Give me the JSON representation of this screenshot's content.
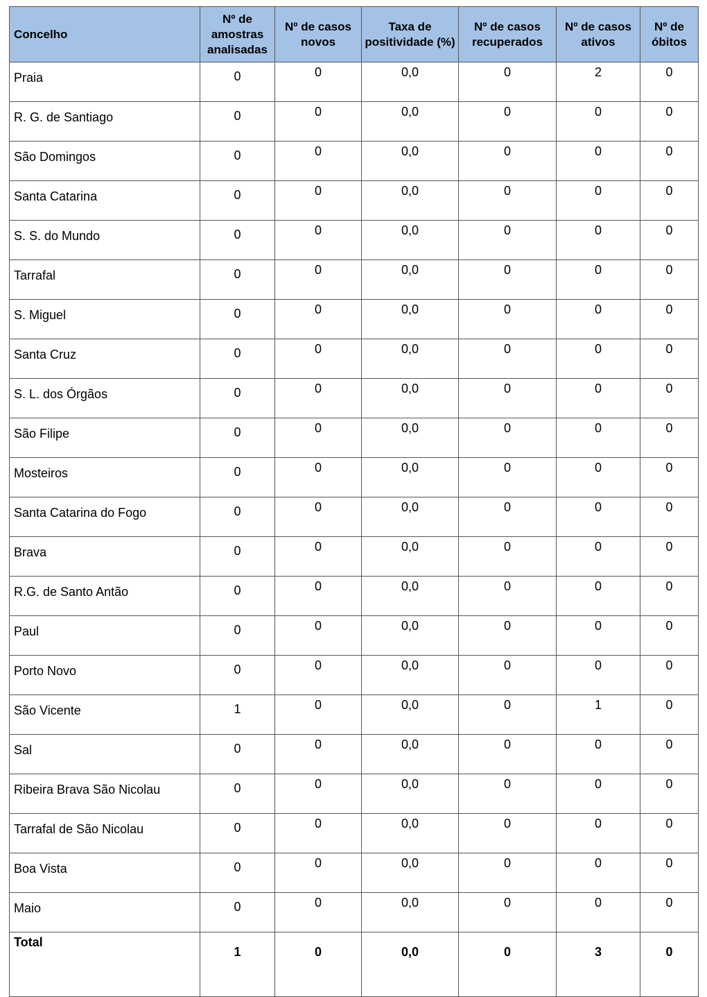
{
  "table": {
    "header_color": "#a4c2e6",
    "headers": [
      "Concelho",
      "Nº de amostras analisadas",
      "Nº de casos novos",
      "Taxa de positividade (%)",
      "Nº de casos recuperados",
      "Nº de casos ativos",
      "Nº de óbitos"
    ],
    "rows": [
      [
        "Praia",
        "0",
        "0",
        "0,0",
        "0",
        "2",
        "0"
      ],
      [
        "R. G. de Santiago",
        "0",
        "0",
        "0,0",
        "0",
        "0",
        "0"
      ],
      [
        "São Domingos",
        "0",
        "0",
        "0,0",
        "0",
        "0",
        "0"
      ],
      [
        "Santa Catarina",
        "0",
        "0",
        "0,0",
        "0",
        "0",
        "0"
      ],
      [
        "S. S. do Mundo",
        "0",
        "0",
        "0,0",
        "0",
        "0",
        "0"
      ],
      [
        "Tarrafal",
        "0",
        "0",
        "0,0",
        "0",
        "0",
        "0"
      ],
      [
        "S. Miguel",
        "0",
        "0",
        "0,0",
        "0",
        "0",
        "0"
      ],
      [
        "Santa Cruz",
        "0",
        "0",
        "0,0",
        "0",
        "0",
        "0"
      ],
      [
        "S. L. dos Órgãos",
        "0",
        "0",
        "0,0",
        "0",
        "0",
        "0"
      ],
      [
        "São Filipe",
        "0",
        "0",
        "0,0",
        "0",
        "0",
        "0"
      ],
      [
        "Mosteiros",
        "0",
        "0",
        "0,0",
        "0",
        "0",
        "0"
      ],
      [
        "Santa Catarina do Fogo",
        "0",
        "0",
        "0,0",
        "0",
        "0",
        "0"
      ],
      [
        "Brava",
        "0",
        "0",
        "0,0",
        "0",
        "0",
        "0"
      ],
      [
        "R.G. de Santo Antão",
        "0",
        "0",
        "0,0",
        "0",
        "0",
        "0"
      ],
      [
        "Paul",
        "0",
        "0",
        "0,0",
        "0",
        "0",
        "0"
      ],
      [
        "Porto Novo",
        "0",
        "0",
        "0,0",
        "0",
        "0",
        "0"
      ],
      [
        "São Vicente",
        "1",
        "0",
        "0,0",
        "0",
        "1",
        "0"
      ],
      [
        "Sal",
        "0",
        "0",
        "0,0",
        "0",
        "0",
        "0"
      ],
      [
        "Ribeira Brava São Nicolau",
        "0",
        "0",
        "0,0",
        "0",
        "0",
        "0"
      ],
      [
        "Tarrafal de São Nicolau",
        "0",
        "0",
        "0,0",
        "0",
        "0",
        "0"
      ],
      [
        "Boa Vista",
        "0",
        "0",
        "0,0",
        "0",
        "0",
        "0"
      ],
      [
        "Maio",
        "0",
        "0",
        "0,0",
        "0",
        "0",
        "0"
      ]
    ],
    "total": [
      "Total",
      "1",
      "0",
      "0,0",
      "0",
      "3",
      "0"
    ]
  }
}
